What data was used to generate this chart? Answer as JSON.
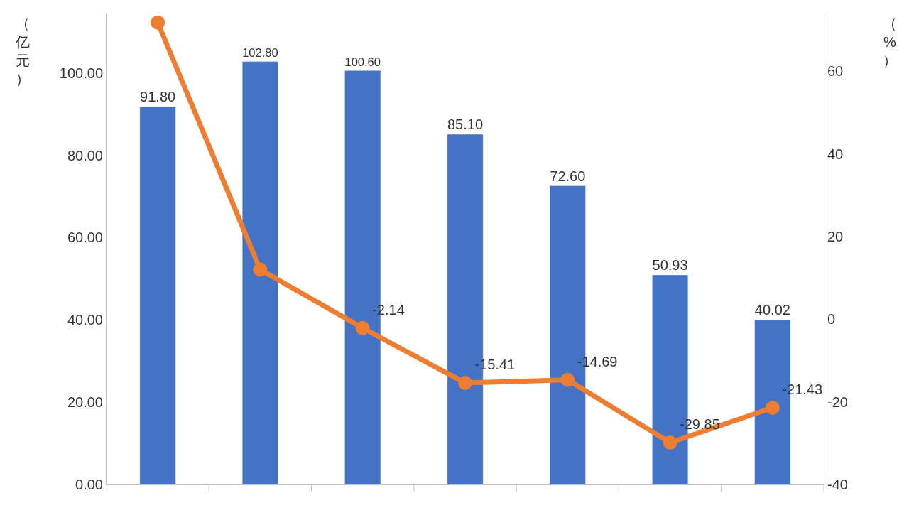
{
  "chart_data": {
    "type": "bar",
    "categories": [
      null,
      null,
      null,
      null,
      null,
      null,
      null
    ],
    "ylabel": "（亿元）",
    "y2label": "（%）",
    "ylim": [
      0,
      114.3
    ],
    "yticks": [
      {
        "value": 0,
        "label": "0.00"
      },
      {
        "value": 20,
        "label": "20.00"
      },
      {
        "value": 40,
        "label": "40.00"
      },
      {
        "value": 60,
        "label": "60.00"
      },
      {
        "value": 80,
        "label": "80.00"
      },
      {
        "value": 100,
        "label": "100.00"
      }
    ],
    "y2lim": [
      -40,
      73.8
    ],
    "y2ticks": [
      -40,
      -20,
      0,
      20,
      40,
      60
    ],
    "series": [
      {
        "color": "#4472c4",
        "values": [
          91.8,
          102.8,
          100.6,
          85.1,
          72.6,
          50.93,
          40.02
        ],
        "value_labels": [
          "91.80",
          "102.80",
          "100.60",
          "85.10",
          "72.60",
          "50.93",
          "40.02"
        ]
      },
      {
        "type": "line",
        "axis": "y2",
        "color": "#ed7d31",
        "marker": "circle",
        "line_style": "solid",
        "values": [
          71.8,
          12.0,
          -2.14,
          -15.41,
          -14.69,
          -29.85,
          -21.43
        ],
        "value_labels": [
          null,
          null,
          "-2.14",
          "-15.41",
          "-14.69",
          "-29.85",
          "-21.43"
        ]
      }
    ]
  }
}
